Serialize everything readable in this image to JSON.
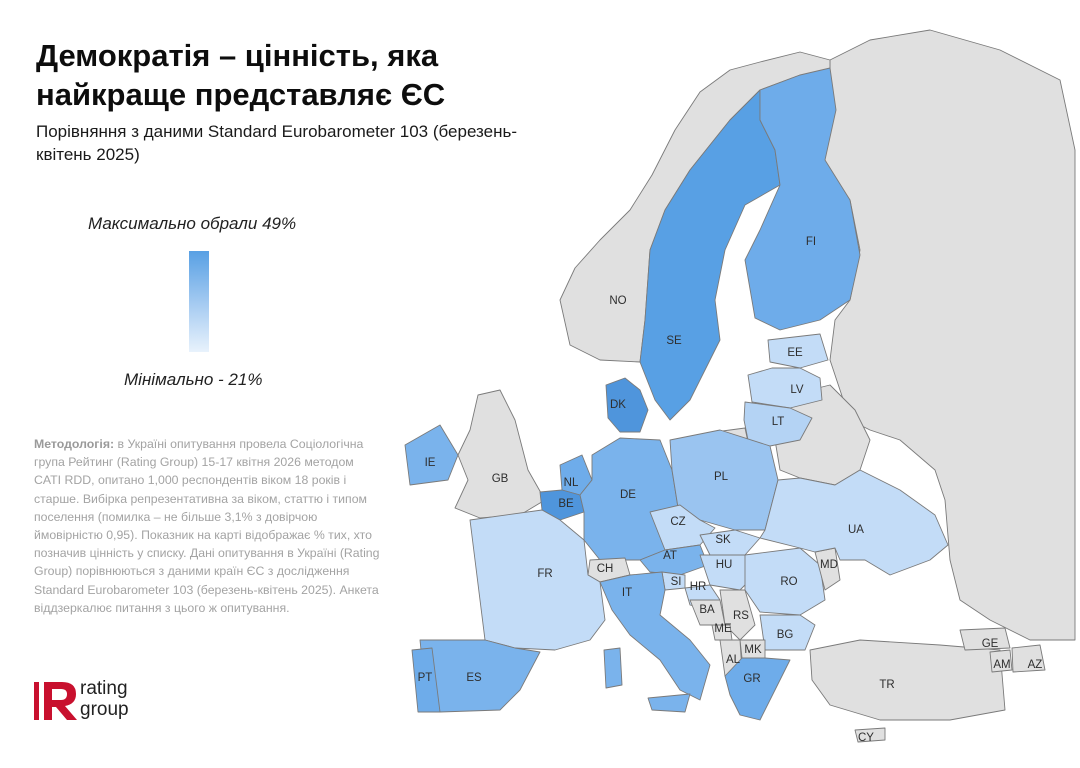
{
  "title": "Демократія – цінність, яка найкраще представляє ЄС",
  "subtitle": "Порівняння з даними Standard Eurobarometer 103 (березень-квітень 2025)",
  "legend": {
    "max_label": "Максимально обрали 49%",
    "min_label": "Мінімально - 21%",
    "max_color": "#58a0e4",
    "min_color": "#e8f2fc",
    "no_data_color": "#e0e0e0"
  },
  "methodology": {
    "label": "Методологія:",
    "text": " в Україні опитування провела Соціологічна група Рейтинг (Rating Group) 15-17 квітня 2026 методом CATI RDD, опитано 1,000 респондентів віком 18 років і старше. Вибірка репрезентативна за віком, статтю і типом поселення (помилка – не більше 3,1% з довірчою ймовірністю 0,95). Показник на карті відображає % тих, хто позначив цінність у списку. Дані опитування в Україні (Rating Group) порівнюються з даними країн ЄС з дослідження Standard Eurobarometer 103 (березень-квітень 2025). Анкета віддзеркалює питання з цього ж опитування."
  },
  "logo": {
    "line1": "rating",
    "line2": "group",
    "letter": "R"
  },
  "countries": {
    "NO": "NO",
    "SE": "SE",
    "FI": "FI",
    "EE": "EE",
    "LV": "LV",
    "LT": "LT",
    "DK": "DK",
    "IE": "IE",
    "GB": "GB",
    "NL": "NL",
    "BE": "BE",
    "DE": "DE",
    "PL": "PL",
    "CZ": "CZ",
    "SK": "SK",
    "AT": "AT",
    "HU": "HU",
    "CH": "CH",
    "FR": "FR",
    "SI": "SI",
    "HR": "HR",
    "IT": "IT",
    "BA": "BA",
    "RS": "RS",
    "ME": "ME",
    "RO": "RO",
    "MD": "MD",
    "UA": "UA",
    "BG": "BG",
    "MK": "MK",
    "AL": "AL",
    "GR": "GR",
    "ES": "ES",
    "PT": "PT",
    "TR": "TR",
    "GE": "GE",
    "AM": "AM",
    "AZ": "AZ",
    "CY": "CY"
  }
}
